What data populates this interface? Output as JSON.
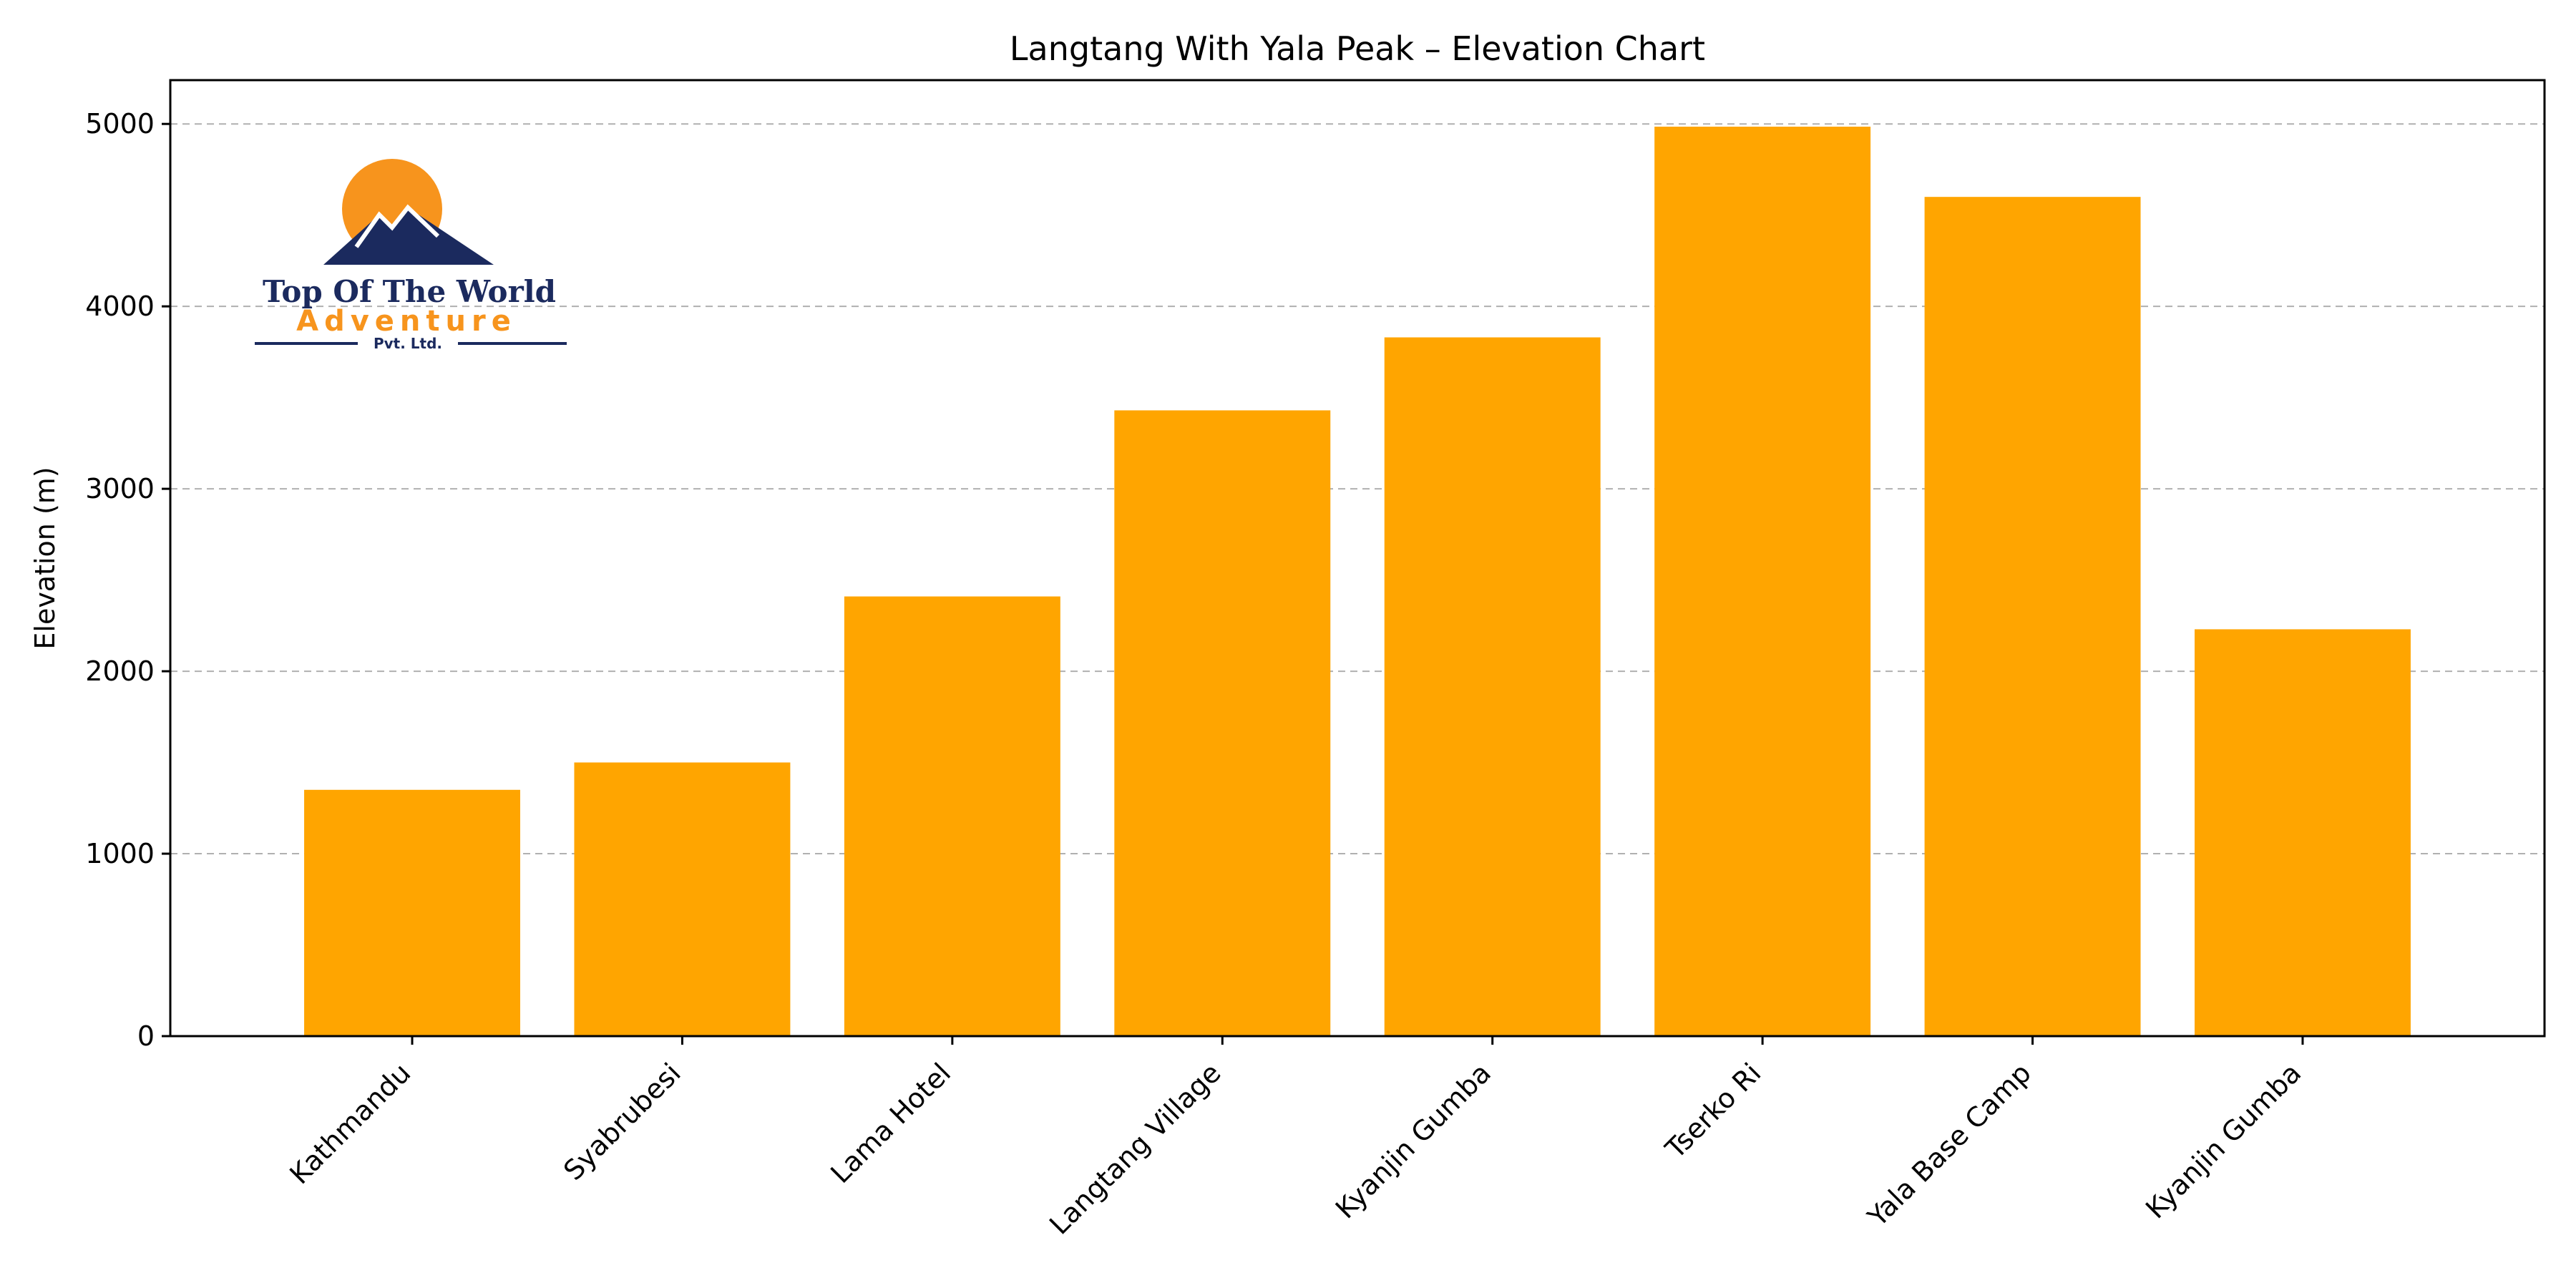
{
  "chart_data": {
    "type": "bar",
    "title": "Langtang With Yala Peak – Elevation Chart",
    "xlabel": "",
    "ylabel": "Elevation (m)",
    "categories": [
      "Kathmandu",
      "Syabrubesi",
      "Lama Hotel",
      "Langtang Village",
      "Kyanjin Gumba",
      "Tserko Ri",
      "Yala Base Camp",
      "Kyanjin Gumba"
    ],
    "values": [
      1350,
      1500,
      2410,
      3430,
      3830,
      4985,
      4600,
      2230
    ],
    "ylim": [
      0,
      5240
    ],
    "yticks": [
      0,
      1000,
      2000,
      3000,
      4000,
      5000
    ],
    "grid": "horizontal dashed",
    "bar_color": "#FFA500"
  },
  "logo": {
    "line1": "Top Of The World",
    "line2": "Adventure",
    "line3": "Pvt. Ltd.",
    "colors": {
      "navy": "#1B2A5E",
      "orange": "#F7941D"
    }
  }
}
